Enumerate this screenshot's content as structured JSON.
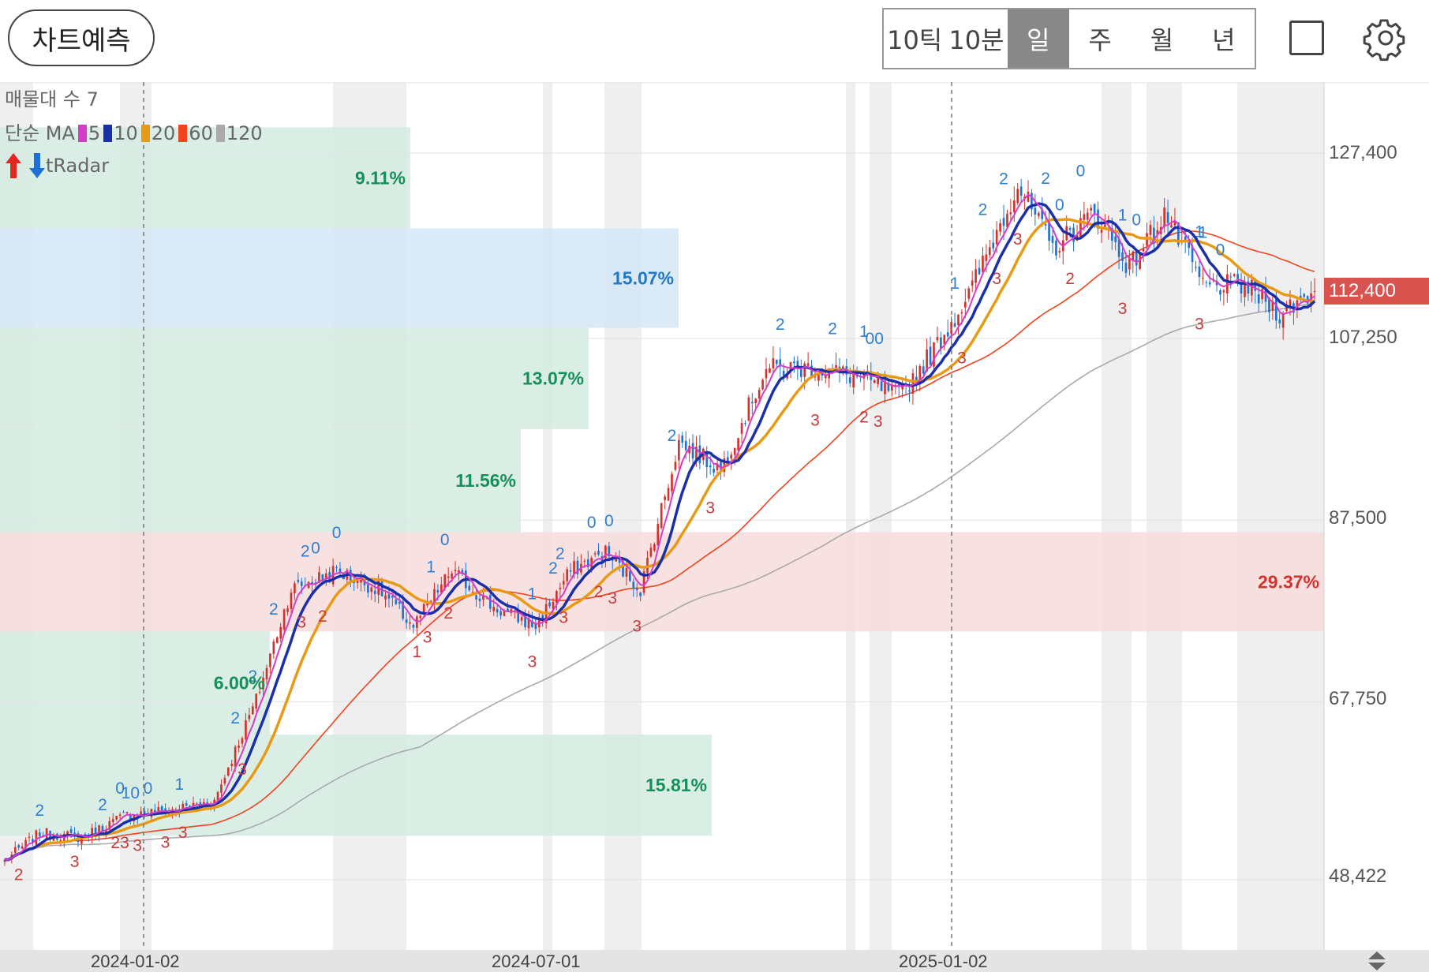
{
  "toolbar": {
    "predict_label": "차트예측",
    "periods": [
      "10틱",
      "10분",
      "일",
      "주",
      "월",
      "년"
    ],
    "active_period": "일",
    "icons": [
      "square-icon",
      "gear-icon"
    ]
  },
  "legend": {
    "volume_profile": "매물대 수 7",
    "ma_title": "단순 MA",
    "ma_items": [
      {
        "label": "5",
        "color": "#d63cc8"
      },
      {
        "label": "10",
        "color": "#1a2fa8"
      },
      {
        "label": "20",
        "color": "#e89a14"
      },
      {
        "label": "60",
        "color": "#f0431e"
      },
      {
        "label": "120",
        "color": "#aaaaaa"
      }
    ],
    "radar_label": "tRadar"
  },
  "colors": {
    "up": "#d2322d",
    "down": "#1e73d2",
    "zone_green": "#d3ebe1",
    "zone_blue": "#d3e6f6",
    "zone_red": "#f7dcdc",
    "pct_green": "#15905a",
    "pct_blue": "#1f78c8",
    "pct_red": "#d2322d"
  },
  "chart_data": {
    "type": "candlestick",
    "y_ticks": [
      "127,400",
      "107,250",
      "87,500",
      "67,750",
      "48,422"
    ],
    "y_tick_values": [
      127400,
      107250,
      87500,
      67750,
      48422
    ],
    "current_price_label": "112,400",
    "current_price": 112400,
    "x_ticks": [
      "2024-01-02",
      "2024-07-01",
      "2025-01-02"
    ],
    "volume_profile": [
      {
        "low": 119200,
        "high": 130200,
        "percent": "9.11%",
        "color": "green"
      },
      {
        "low": 108400,
        "high": 119200,
        "percent": "15.07%",
        "color": "blue"
      },
      {
        "low": 97400,
        "high": 108400,
        "percent": "13.07%",
        "color": "green"
      },
      {
        "low": 86200,
        "high": 97400,
        "percent": "11.56%",
        "color": "green"
      },
      {
        "low": 75400,
        "high": 86200,
        "percent": "29.37%",
        "color": "red"
      },
      {
        "low": 64200,
        "high": 75400,
        "percent": "6.00%",
        "color": "green"
      },
      {
        "low": 53200,
        "high": 64200,
        "percent": "15.81%",
        "color": "green"
      }
    ],
    "price_path": [
      [
        0,
        50500
      ],
      [
        10,
        53500
      ],
      [
        22,
        53000
      ],
      [
        35,
        55500
      ],
      [
        48,
        56000
      ],
      [
        60,
        57000
      ],
      [
        72,
        68000
      ],
      [
        82,
        80000
      ],
      [
        95,
        82000
      ],
      [
        107,
        80000
      ],
      [
        117,
        76000
      ],
      [
        128,
        82000
      ],
      [
        140,
        78000
      ],
      [
        152,
        76000
      ],
      [
        162,
        82000
      ],
      [
        172,
        84000
      ],
      [
        182,
        80000
      ],
      [
        193,
        96000
      ],
      [
        205,
        93000
      ],
      [
        218,
        104000
      ],
      [
        232,
        104000
      ],
      [
        245,
        103000
      ],
      [
        256,
        101000
      ],
      [
        266,
        106000
      ],
      [
        276,
        112000
      ],
      [
        290,
        124000
      ],
      [
        300,
        117000
      ],
      [
        312,
        121000
      ],
      [
        322,
        115000
      ],
      [
        332,
        121000
      ],
      [
        343,
        113000
      ],
      [
        355,
        113000
      ],
      [
        365,
        110000
      ],
      [
        375,
        112400
      ]
    ],
    "last_index": 375,
    "tradar_labels": [
      {
        "i": 10,
        "t": "2",
        "s": "up"
      },
      {
        "i": 28,
        "t": "2",
        "s": "up"
      },
      {
        "i": 33,
        "t": "0",
        "s": "up"
      },
      {
        "i": 36,
        "t": "10",
        "s": "up"
      },
      {
        "i": 41,
        "t": "0",
        "s": "up"
      },
      {
        "i": 50,
        "t": "1",
        "s": "up"
      },
      {
        "i": 66,
        "t": "2",
        "s": "up"
      },
      {
        "i": 71,
        "t": "2",
        "s": "up"
      },
      {
        "i": 77,
        "t": "2",
        "s": "up"
      },
      {
        "i": 86,
        "t": "2",
        "s": "up"
      },
      {
        "i": 89,
        "t": "0",
        "s": "up"
      },
      {
        "i": 95,
        "t": "0",
        "s": "up"
      },
      {
        "i": 122,
        "t": "1",
        "s": "up"
      },
      {
        "i": 126,
        "t": "0",
        "s": "up"
      },
      {
        "i": 151,
        "t": "1",
        "s": "up"
      },
      {
        "i": 157,
        "t": "2",
        "s": "up"
      },
      {
        "i": 159,
        "t": "2",
        "s": "up"
      },
      {
        "i": 168,
        "t": "0",
        "s": "up"
      },
      {
        "i": 173,
        "t": "0",
        "s": "up"
      },
      {
        "i": 191,
        "t": "2",
        "s": "up"
      },
      {
        "i": 222,
        "t": "2",
        "s": "up"
      },
      {
        "i": 237,
        "t": "2",
        "s": "up"
      },
      {
        "i": 246,
        "t": "1",
        "s": "up"
      },
      {
        "i": 249,
        "t": "00",
        "s": "up"
      },
      {
        "i": 272,
        "t": "1",
        "s": "up"
      },
      {
        "i": 280,
        "t": "2",
        "s": "up"
      },
      {
        "i": 286,
        "t": "2",
        "s": "up"
      },
      {
        "i": 298,
        "t": "2",
        "s": "up"
      },
      {
        "i": 302,
        "t": "0",
        "s": "up"
      },
      {
        "i": 308,
        "t": "0",
        "s": "up"
      },
      {
        "i": 320,
        "t": "1",
        "s": "up"
      },
      {
        "i": 324,
        "t": "0",
        "s": "up"
      },
      {
        "i": 342,
        "t": "1",
        "s": "up"
      },
      {
        "i": 343,
        "t": "1",
        "s": "up"
      },
      {
        "i": 348,
        "t": "0",
        "s": "up"
      },
      {
        "i": 4,
        "t": "2",
        "s": "dn"
      },
      {
        "i": 20,
        "t": "3",
        "s": "dn"
      },
      {
        "i": 33,
        "t": "23",
        "s": "dn"
      },
      {
        "i": 38,
        "t": "3",
        "s": "dn"
      },
      {
        "i": 46,
        "t": "3",
        "s": "dn"
      },
      {
        "i": 51,
        "t": "3",
        "s": "dn"
      },
      {
        "i": 68,
        "t": "3",
        "s": "dn"
      },
      {
        "i": 85,
        "t": "3",
        "s": "dn"
      },
      {
        "i": 91,
        "t": "2",
        "s": "dn"
      },
      {
        "i": 118,
        "t": "1",
        "s": "dn"
      },
      {
        "i": 121,
        "t": "3",
        "s": "dn"
      },
      {
        "i": 127,
        "t": "2",
        "s": "dn"
      },
      {
        "i": 151,
        "t": "3",
        "s": "dn"
      },
      {
        "i": 160,
        "t": "3",
        "s": "dn"
      },
      {
        "i": 170,
        "t": "2",
        "s": "dn"
      },
      {
        "i": 174,
        "t": "3",
        "s": "dn"
      },
      {
        "i": 181,
        "t": "3",
        "s": "dn"
      },
      {
        "i": 202,
        "t": "3",
        "s": "dn"
      },
      {
        "i": 232,
        "t": "3",
        "s": "dn"
      },
      {
        "i": 246,
        "t": "2",
        "s": "dn"
      },
      {
        "i": 250,
        "t": "3",
        "s": "dn"
      },
      {
        "i": 274,
        "t": "3",
        "s": "dn"
      },
      {
        "i": 284,
        "t": "3",
        "s": "dn"
      },
      {
        "i": 290,
        "t": "3",
        "s": "dn"
      },
      {
        "i": 305,
        "t": "2",
        "s": "dn"
      },
      {
        "i": 320,
        "t": "3",
        "s": "dn"
      },
      {
        "i": 342,
        "t": "3",
        "s": "dn"
      }
    ]
  }
}
